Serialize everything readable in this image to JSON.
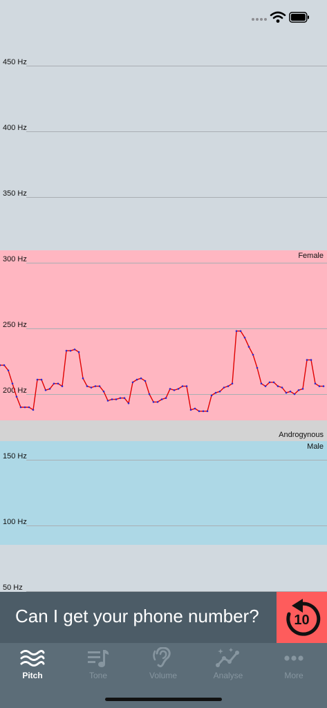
{
  "status_bar": {
    "icons": [
      "cellular-dots-icon",
      "wifi-icon",
      "battery-icon"
    ]
  },
  "plot": {
    "unit": "Hz",
    "ticks": [
      "450 Hz",
      "400 Hz",
      "350 Hz",
      "300 Hz",
      "250 Hz",
      "200 Hz",
      "150 Hz",
      "100 Hz",
      "50 Hz"
    ],
    "bands": {
      "female": {
        "label": "Female",
        "range_hz": [
          180,
          310
        ],
        "color": "#ffb6c1"
      },
      "androgynous": {
        "label": "Androgynous",
        "range_hz": [
          165,
          180
        ],
        "color": "#d3d3d3"
      },
      "male": {
        "label": "Male",
        "range_hz": [
          85,
          165
        ],
        "color": "#add8e6"
      }
    },
    "pitch_series_hz": [
      222,
      222,
      218,
      208,
      198,
      190,
      190,
      190,
      188,
      211,
      211,
      203,
      204,
      208,
      208,
      206,
      233,
      233,
      234,
      232,
      212,
      206,
      205,
      206,
      206,
      202,
      195,
      196,
      196,
      197,
      197,
      193,
      209,
      211,
      212,
      210,
      200,
      194,
      194,
      196,
      197,
      204,
      203,
      204,
      206,
      206,
      188,
      189,
      187,
      187,
      187,
      199,
      201,
      202,
      205,
      206,
      208,
      248,
      248,
      243,
      236,
      230,
      220,
      208,
      206,
      209,
      209,
      206,
      205,
      201,
      202,
      200,
      203,
      204,
      226,
      226,
      208,
      206,
      206
    ],
    "line_color": "#e00000",
    "point_color": "#2a2ad0"
  },
  "phrase": {
    "text": "Can I get your phone number?"
  },
  "replay": {
    "count": "10",
    "icon": "replay-arrow-icon"
  },
  "tabs": [
    {
      "label": "Pitch",
      "icon": "waves-icon",
      "active": true
    },
    {
      "label": "Tone",
      "icon": "music-list-icon",
      "active": false
    },
    {
      "label": "Volume",
      "icon": "ear-icon",
      "active": false
    },
    {
      "label": "Analyse",
      "icon": "sparkle-chart-icon",
      "active": false
    },
    {
      "label": "More",
      "icon": "ellipsis-icon",
      "active": false
    }
  ]
}
